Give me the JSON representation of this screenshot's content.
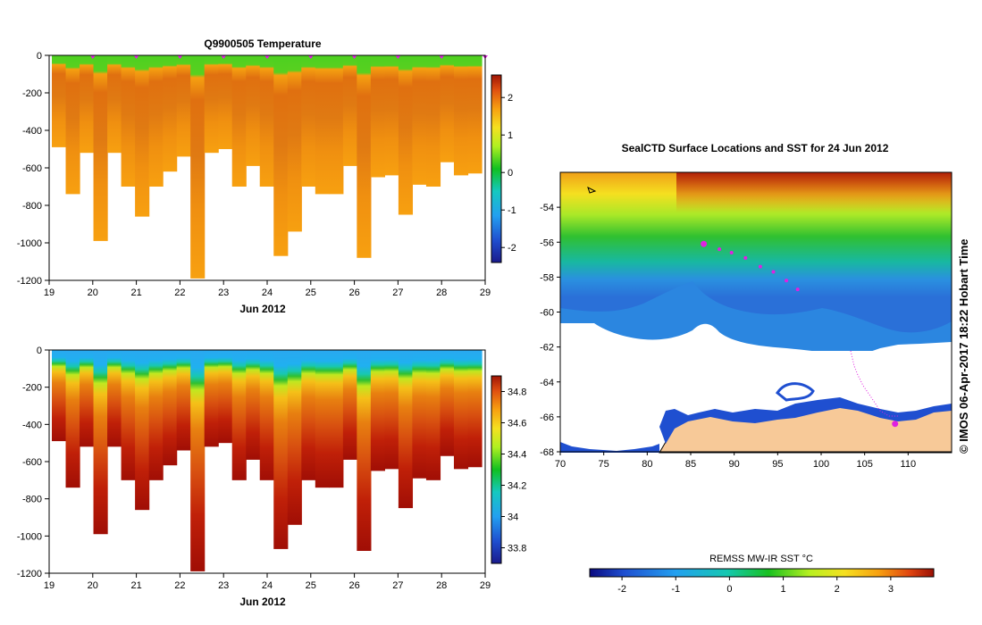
{
  "chart_data": [
    {
      "type": "heatmap",
      "title": "Q9900505  Temperature",
      "xlabel": "Jun 2012",
      "ylabel": "",
      "x_ticks": [
        "19",
        "20",
        "21",
        "22",
        "23",
        "24",
        "25",
        "26",
        "27",
        "28",
        "29"
      ],
      "x_range": [
        19,
        29
      ],
      "y_ticks": [
        "0",
        "-200",
        "-400",
        "-600",
        "-800",
        "-1000",
        "-1200"
      ],
      "y_range": [
        -1200,
        0
      ],
      "colorbar_ticks": [
        "2",
        "1",
        "0",
        "-1",
        "-2"
      ],
      "colorbar_range": [
        -2.4,
        2.6
      ],
      "surface_markers_day": [
        20,
        21,
        22,
        23,
        24,
        25,
        26,
        27,
        28,
        29
      ],
      "profile_max_depth": [
        -490,
        -740,
        -520,
        -990,
        -520,
        -700,
        -860,
        -700,
        -620,
        -540,
        -1190,
        -520,
        -500,
        -700,
        -590,
        -700,
        -1070,
        -940,
        -700,
        -740,
        -740,
        -590,
        -1080,
        -650,
        -640,
        -850,
        -690,
        -700,
        -570,
        -640,
        -630
      ]
    },
    {
      "type": "heatmap",
      "title": "",
      "xlabel": "Jun 2012",
      "ylabel": "",
      "x_ticks": [
        "19",
        "20",
        "21",
        "22",
        "23",
        "24",
        "25",
        "26",
        "27",
        "28",
        "29"
      ],
      "x_range": [
        19,
        29
      ],
      "y_ticks": [
        "0",
        "-200",
        "-400",
        "-600",
        "-800",
        "-1000",
        "-1200"
      ],
      "y_range": [
        -1200,
        0
      ],
      "colorbar_ticks": [
        "34.8",
        "34.6",
        "34.4",
        "34.2",
        "34",
        "33.8"
      ],
      "colorbar_range": [
        33.7,
        34.9
      ],
      "profile_max_depth": [
        -490,
        -740,
        -520,
        -990,
        -520,
        -700,
        -860,
        -700,
        -620,
        -540,
        -1190,
        -520,
        -500,
        -700,
        -590,
        -700,
        -1070,
        -940,
        -700,
        -740,
        -740,
        -590,
        -1080,
        -650,
        -640,
        -850,
        -690,
        -700,
        -570,
        -640,
        -630
      ]
    },
    {
      "type": "heatmap",
      "title": "SealCTD Surface Locations and SST for 24 Jun 2012",
      "xlabel": "",
      "ylabel": "",
      "x_ticks": [
        "70",
        "75",
        "80",
        "85",
        "90",
        "95",
        "100",
        "105",
        "110"
      ],
      "x_range": [
        70,
        115
      ],
      "y_ticks": [
        "-54",
        "-56",
        "-58",
        "-60",
        "-62",
        "-64",
        "-66",
        "-68"
      ],
      "y_range": [
        -68,
        -52
      ],
      "colorbar_label": "REMSS MW-IR SST °C",
      "colorbar_ticks": [
        "-2",
        "-1",
        "0",
        "1",
        "2",
        "3"
      ],
      "colorbar_range": [
        -2.6,
        3.8
      ],
      "surface_locations": [
        {
          "lon": 86.5,
          "lat": -56.1
        },
        {
          "lon": 88.3,
          "lat": -56.4
        },
        {
          "lon": 89.7,
          "lat": -56.6
        },
        {
          "lon": 91.3,
          "lat": -56.9
        },
        {
          "lon": 93.0,
          "lat": -57.4
        },
        {
          "lon": 94.5,
          "lat": -57.7
        },
        {
          "lon": 96.0,
          "lat": -58.2
        },
        {
          "lon": 97.3,
          "lat": -58.7
        }
      ],
      "track_end": {
        "lon": 108.5,
        "lat": -66.4
      }
    }
  ],
  "credit": "© IMOS 06-Apr-2017 18:22 Hobart Time"
}
